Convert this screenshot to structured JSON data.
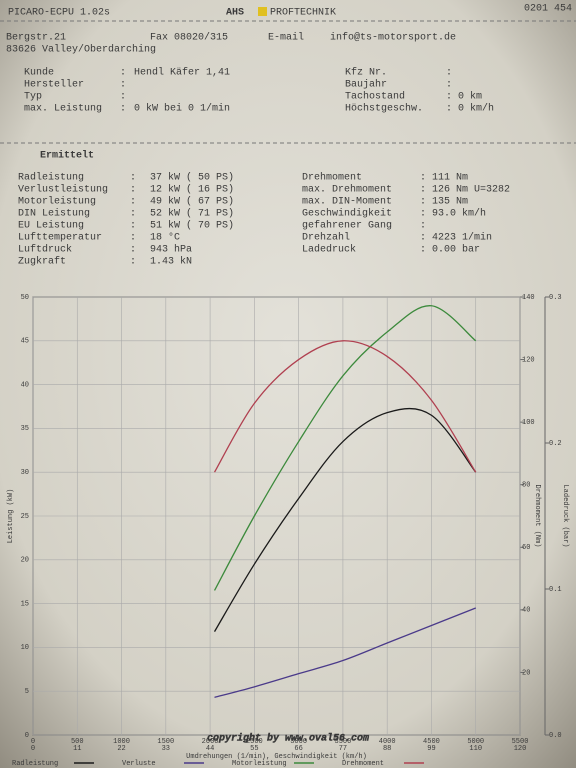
{
  "header": {
    "software": "PICARO-ECPU 1.02s",
    "brand_prefix": "AHS",
    "brand": "PROFTECHNIK",
    "page": "0201 454"
  },
  "contact": {
    "street": "Bergstr.21",
    "fax": "Fax 08020/315",
    "email_label": "E-mail",
    "email": "info@ts-motorsport.de",
    "city": "83626 Valley/Oberdarching"
  },
  "separator": ":",
  "vehicle": {
    "left": [
      [
        "Kunde",
        "Hendl Käfer 1,41"
      ],
      [
        "Hersteller"
      ],
      [
        "Typ"
      ],
      [
        "max. Leistung",
        "0 kW bei 0 1/min"
      ]
    ],
    "right": [
      [
        "Kfz Nr."
      ],
      [
        "Baujahr"
      ],
      [
        "Tachostand",
        "0 km"
      ],
      [
        "Höchstgeschw.",
        "0 km/h"
      ]
    ]
  },
  "results": {
    "title": "Ermittelt",
    "left": [
      [
        "Radleistung",
        "37 kW ( 50 PS)"
      ],
      [
        "Verlustleistung",
        "12 kW ( 16 PS)"
      ],
      [
        "Motorleistung",
        "49 kW ( 67 PS)"
      ],
      [
        "DIN Leistung",
        "52 kW ( 71 PS)"
      ],
      [
        "EU Leistung",
        "51 kW ( 70 PS)"
      ],
      [
        "Lufttemperatur",
        "18 °C"
      ],
      [
        "Luftdruck",
        "943 hPa"
      ],
      [
        "Zugkraft",
        "1.43 kN"
      ]
    ],
    "right": [
      [
        "Drehmoment",
        "111 Nm"
      ],
      [
        "max. Drehmoment",
        "126 Nm U=3282"
      ],
      [
        "max. DIN-Moment",
        "135 Nm"
      ],
      [
        "Geschwindigkeit",
        "93.0 km/h"
      ],
      [
        "gefahrener Gang"
      ],
      [
        "Drehzahl",
        "4223 1/min"
      ],
      [
        "Ladedruck",
        "0.00 bar"
      ]
    ]
  },
  "chart_data": {
    "type": "line",
    "x_label": "Umdrehungen (1/min), Geschwindigkeit (km/h)",
    "y_label": "Leistung (kW)",
    "y2_label": "Drehmoment (Nm)",
    "y3_label": "Ladedruck (bar)",
    "x": [
      2050,
      2500,
      3000,
      3500,
      4000,
      4500,
      5000
    ],
    "series": [
      {
        "name": "Radleistung",
        "color": "#1a1a1a",
        "values": [
          11.8,
          19.5,
          27,
          33.5,
          36.8,
          36.5,
          30
        ]
      },
      {
        "name": "Verluste",
        "color": "#4a3a8a",
        "values": [
          4.3,
          5.5,
          7,
          8.5,
          10.5,
          12.5,
          14.5
        ]
      },
      {
        "name": "Motorleistung",
        "color": "#3c8a3c",
        "values": [
          16.5,
          25,
          33.5,
          41,
          46,
          49,
          45
        ]
      },
      {
        "name": "Drehmoment",
        "color": "#b04050",
        "axis": "y2",
        "values": [
          84,
          106,
          120,
          126,
          121,
          107,
          84
        ]
      }
    ],
    "xlim": [
      0,
      5500
    ],
    "xticks": [
      0,
      500,
      1000,
      1500,
      2000,
      2500,
      3000,
      3500,
      4000,
      4500,
      5000,
      5500
    ],
    "speed_ticks": [
      0,
      11,
      22,
      33,
      44,
      55,
      66,
      77,
      88,
      99,
      110,
      120
    ],
    "ylim": [
      0,
      50
    ],
    "yticks": [
      0,
      5,
      10,
      15,
      20,
      25,
      30,
      35,
      40,
      45,
      50
    ],
    "y2lim": [
      0,
      140
    ],
    "y2ticks": [
      20,
      40,
      60,
      80,
      100,
      120,
      140
    ],
    "y3lim": [
      0,
      0.3
    ],
    "y3ticks": [
      {
        "value": 0,
        "label": "0.0"
      },
      0.1,
      0.2,
      0.3
    ],
    "grid": true
  },
  "watermark": "copyright by www.oval56.com"
}
